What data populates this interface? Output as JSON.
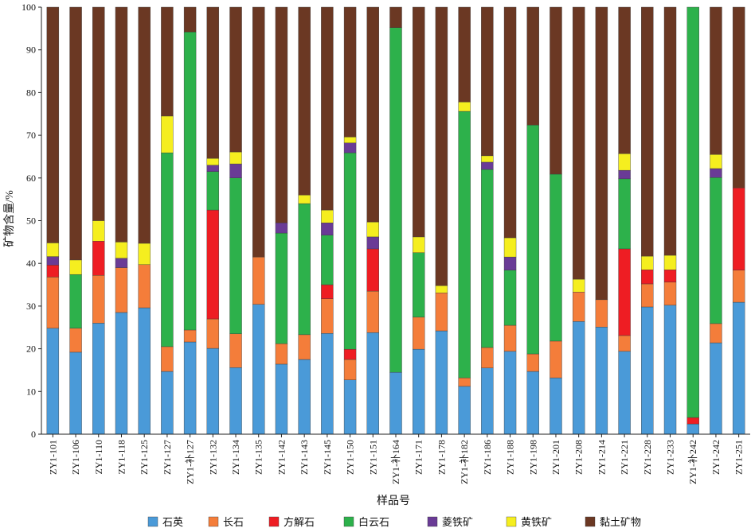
{
  "chart_data": {
    "type": "bar",
    "stacked": true,
    "title": "",
    "xlabel": "样品号",
    "ylabel": "矿物含量/%",
    "ylim": [
      0,
      100
    ],
    "yticks": [
      "0",
      "10",
      "20",
      "30",
      "40",
      "50",
      "60",
      "70",
      "80",
      "90",
      "100"
    ],
    "grid": false,
    "legend": "bottom",
    "categories": [
      "ZY1-101",
      "ZY1-106",
      "ZY1-110",
      "ZY1-118",
      "ZY1-125",
      "ZY1-127",
      "ZY1-补127",
      "ZY1-132",
      "ZY1-134",
      "ZY1-135",
      "ZY1-142",
      "ZY1-143",
      "ZY1-145",
      "ZY1-150",
      "ZY1-151",
      "ZY1-补164",
      "ZY1-171",
      "ZY1-178",
      "ZY1-补182",
      "ZY1-186",
      "ZY1-188",
      "ZY1-198",
      "ZY1-201",
      "ZY1-208",
      "ZY1-214",
      "ZY1-221",
      "ZY1-228",
      "ZY1-233",
      "ZY1-补242",
      "ZY1-242",
      "ZY1-251"
    ],
    "series": [
      {
        "name": "石英",
        "color": "#4a9ad8",
        "values": [
          24.8,
          19.2,
          26.0,
          28.5,
          29.6,
          14.7,
          21.6,
          20.1,
          15.6,
          30.4,
          16.4,
          17.5,
          23.6,
          12.7,
          23.8,
          14.5,
          19.9,
          24.2,
          11.2,
          15.5,
          19.4,
          14.7,
          13.2,
          26.4,
          25.1,
          19.4,
          29.8,
          30.2,
          2.4,
          21.4,
          30.9
        ]
      },
      {
        "name": "长石",
        "color": "#f47d3a",
        "values": [
          12.0,
          5.6,
          11.2,
          10.5,
          10.1,
          5.8,
          2.8,
          6.9,
          7.9,
          11.1,
          4.8,
          5.8,
          8.1,
          4.8,
          9.7,
          0,
          7.5,
          8.9,
          2.0,
          4.8,
          6.1,
          4.1,
          8.6,
          6.9,
          6.4,
          3.7,
          5.4,
          5.4,
          0,
          4.5,
          7.5
        ]
      },
      {
        "name": "方解石",
        "color": "#ee1d23",
        "values": [
          2.8,
          0,
          8.0,
          0,
          0,
          0,
          0,
          25.5,
          0,
          0,
          0,
          0,
          3.3,
          2.4,
          9.9,
          0,
          0,
          0,
          0,
          0,
          0,
          0,
          0,
          0,
          0,
          20.3,
          3.3,
          2.9,
          1.5,
          0,
          19.3
        ]
      },
      {
        "name": "白云石",
        "color": "#2db14b",
        "values": [
          0,
          12.6,
          0,
          0,
          0,
          45.4,
          69.8,
          9.0,
          36.5,
          0,
          25.9,
          30.7,
          11.6,
          46.0,
          0,
          80.7,
          15.1,
          0,
          62.4,
          41.7,
          12.9,
          53.6,
          39.1,
          0,
          0,
          16.4,
          0,
          0,
          96.1,
          34.2,
          0
        ]
      },
      {
        "name": "菱铁矿",
        "color": "#6a3b96",
        "values": [
          2.0,
          0,
          0,
          2.2,
          0,
          0,
          0,
          1.5,
          3.3,
          0,
          2.4,
          0,
          2.9,
          2.3,
          2.8,
          0,
          0,
          0,
          0,
          1.7,
          3.1,
          0,
          0,
          0,
          0,
          2.0,
          0,
          0,
          0,
          2.1,
          0
        ]
      },
      {
        "name": "黄铁矿",
        "color": "#f5ee1f",
        "values": [
          3.2,
          3.4,
          4.8,
          3.8,
          5.0,
          8.6,
          0,
          1.6,
          2.8,
          0,
          0,
          2.0,
          3.0,
          1.4,
          3.5,
          0,
          3.7,
          1.7,
          2.2,
          1.5,
          4.5,
          0,
          0,
          3.0,
          0,
          3.9,
          3.2,
          3.4,
          0,
          3.3,
          0
        ]
      },
      {
        "name": "黏土矿物",
        "color": "#6b3823",
        "values": [
          55.2,
          59.2,
          50.0,
          55.0,
          55.3,
          25.5,
          5.8,
          35.4,
          33.9,
          58.5,
          50.5,
          44.0,
          47.5,
          30.4,
          50.3,
          4.8,
          53.8,
          65.2,
          22.2,
          34.8,
          54.0,
          27.6,
          39.1,
          63.7,
          68.5,
          34.3,
          58.3,
          58.1,
          0,
          34.5,
          42.3
        ]
      }
    ]
  }
}
